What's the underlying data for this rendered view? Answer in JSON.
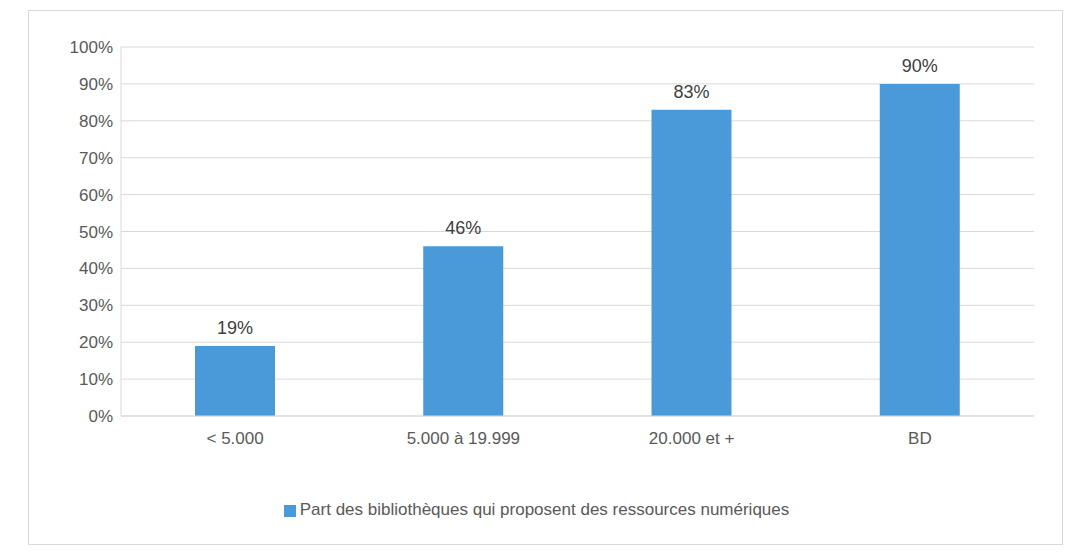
{
  "chart_data": {
    "type": "bar",
    "categories": [
      "< 5.000",
      "5.000 à 19.999",
      "20.000 et +",
      "BD"
    ],
    "series": [
      {
        "name": "Part des bibliothèques qui proposent des ressources numériques",
        "color": "#4a9ad9",
        "values": [
          19,
          46,
          83,
          90
        ],
        "value_labels": [
          "19%",
          "46%",
          "83%",
          "90%"
        ]
      }
    ],
    "ylim": [
      0,
      100
    ],
    "yticks": [
      {
        "value": 0,
        "label": "0%"
      },
      {
        "value": 10,
        "label": "10%"
      },
      {
        "value": 20,
        "label": "20%"
      },
      {
        "value": 30,
        "label": "30%"
      },
      {
        "value": 40,
        "label": "40%"
      },
      {
        "value": 50,
        "label": "50%"
      },
      {
        "value": 60,
        "label": "60%"
      },
      {
        "value": 70,
        "label": "70%"
      },
      {
        "value": 80,
        "label": "80%"
      },
      {
        "value": 90,
        "label": "90%"
      },
      {
        "value": 100,
        "label": "100%"
      }
    ],
    "grid": true,
    "legend": "bottom",
    "data_labels": true
  }
}
